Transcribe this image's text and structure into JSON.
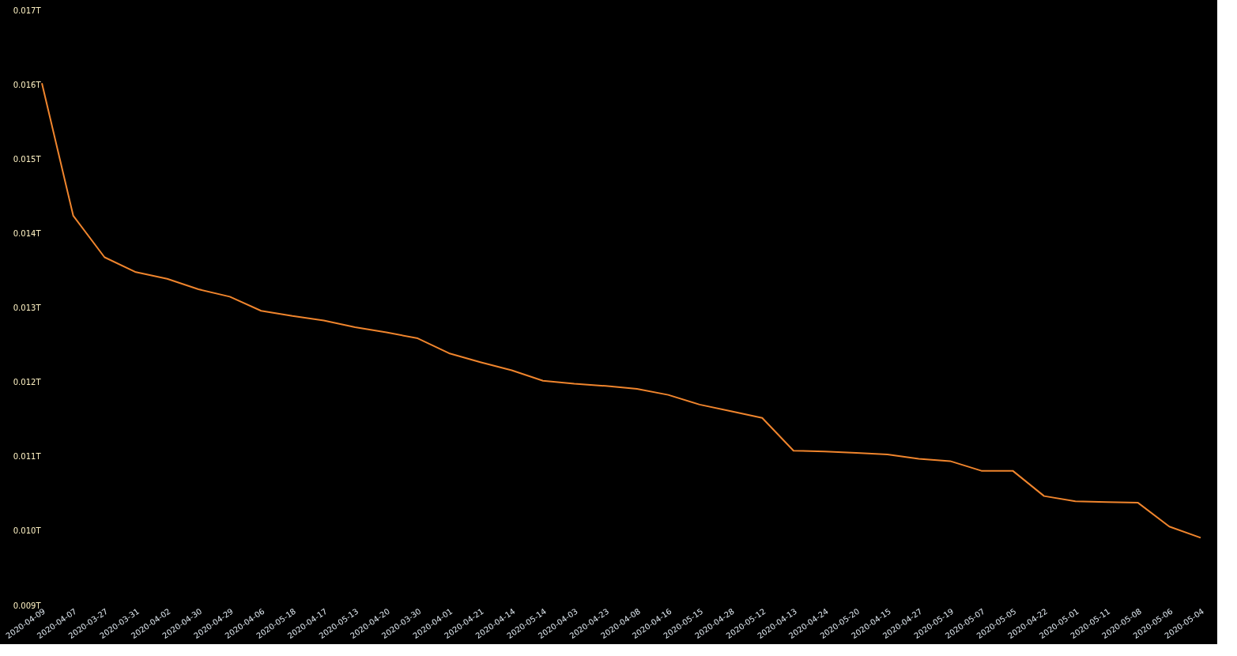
{
  "chart_data": {
    "type": "line",
    "categories": [
      "2020-04-09",
      "2020-04-07",
      "2020-03-27",
      "2020-03-31",
      "2020-04-02",
      "2020-04-30",
      "2020-04-29",
      "2020-04-06",
      "2020-05-18",
      "2020-04-17",
      "2020-05-13",
      "2020-04-20",
      "2020-03-30",
      "2020-04-01",
      "2020-04-21",
      "2020-04-14",
      "2020-05-14",
      "2020-04-03",
      "2020-04-23",
      "2020-04-08",
      "2020-04-16",
      "2020-05-15",
      "2020-04-28",
      "2020-05-12",
      "2020-04-13",
      "2020-04-24",
      "2020-05-20",
      "2020-04-15",
      "2020-04-27",
      "2020-05-19",
      "2020-05-07",
      "2020-05-05",
      "2020-04-22",
      "2020-05-01",
      "2020-05-11",
      "2020-05-08",
      "2020-05-06",
      "2020-05-04"
    ],
    "series": [
      {
        "color": "#f0852d",
        "values": [
          0.01602,
          0.01424,
          0.01368,
          0.01348,
          0.01339,
          0.01325,
          0.01315,
          0.01296,
          0.01289,
          0.01283,
          0.01274,
          0.01267,
          0.01259,
          0.01239,
          0.01227,
          0.01216,
          0.01202,
          0.01198,
          0.01195,
          0.01191,
          0.01183,
          0.0117,
          0.01161,
          0.01152,
          0.01108,
          0.01107,
          0.01105,
          0.01103,
          0.01097,
          0.01094,
          0.01081,
          0.01081,
          0.01047,
          0.0104,
          0.01039,
          0.01038,
          0.01006,
          0.00991
        ]
      }
    ],
    "ylim": [
      0.009,
      0.017
    ],
    "yticks": [
      {
        "value": 0.009,
        "label": "0.009T"
      },
      {
        "value": 0.01,
        "label": "0.010T"
      },
      {
        "value": 0.011,
        "label": "0.011T"
      },
      {
        "value": 0.012,
        "label": "0.012T"
      },
      {
        "value": 0.013,
        "label": "0.013T"
      },
      {
        "value": 0.014,
        "label": "0.014T"
      },
      {
        "value": 0.015,
        "label": "0.015T"
      },
      {
        "value": 0.016,
        "label": "0.016T"
      },
      {
        "value": 0.017,
        "label": "0.017T"
      }
    ],
    "grid": false,
    "marker": "none",
    "line_style": "solid"
  }
}
